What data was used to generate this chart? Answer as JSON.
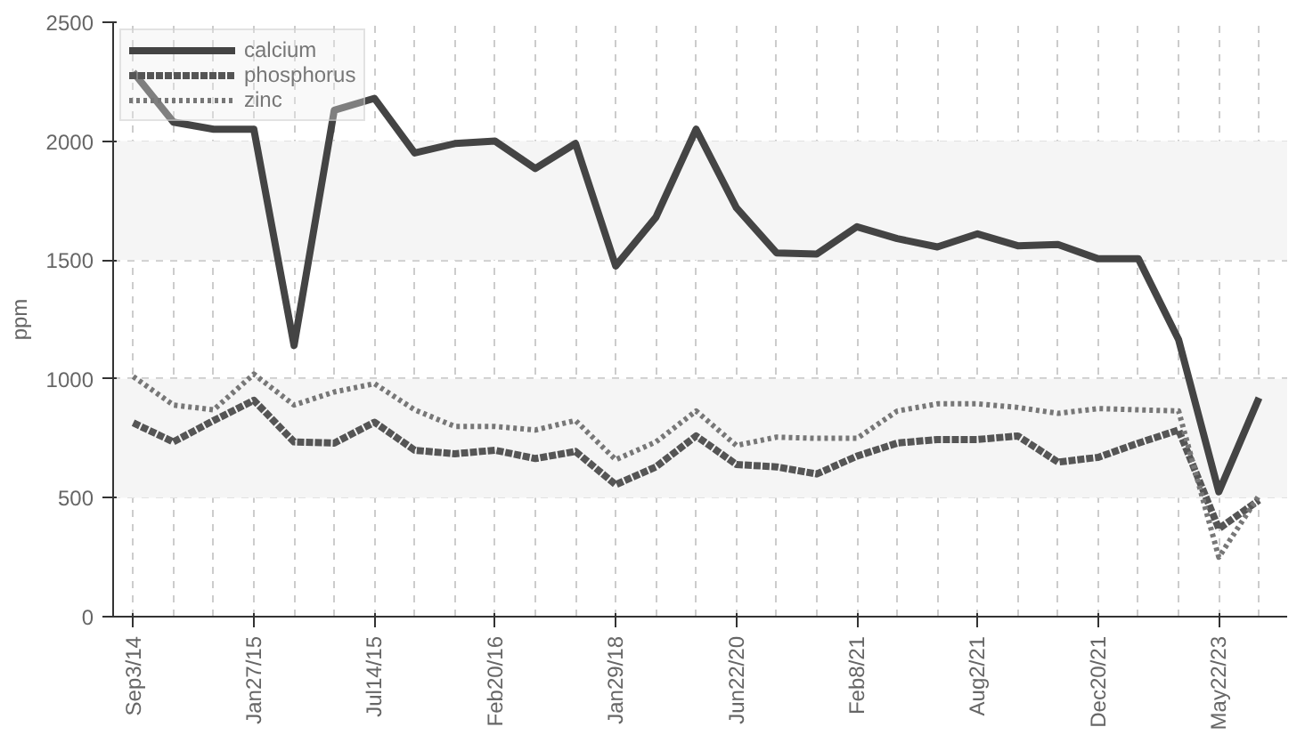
{
  "chart_data": {
    "type": "line",
    "ylabel": "ppm",
    "categories": [
      "Sep3/14",
      null,
      null,
      "Jan27/15",
      null,
      null,
      "Jul14/15",
      null,
      null,
      "Feb20/16",
      null,
      null,
      "Jan29/18",
      null,
      null,
      "Jun22/20",
      null,
      null,
      "Feb8/21",
      null,
      null,
      "Aug2/21",
      null,
      null,
      "Dec20/21",
      null,
      null,
      "May22/23",
      null
    ],
    "series": [
      {
        "name": "calcium",
        "color": "#444444",
        "line_style": "solid",
        "values": [
          2290,
          2080,
          2050,
          2050,
          1140,
          2130,
          2180,
          1950,
          1990,
          2000,
          1885,
          1990,
          1475,
          1680,
          2050,
          1720,
          1530,
          1525,
          1640,
          1590,
          1555,
          1610,
          1560,
          1565,
          1505,
          1505,
          1165,
          525,
          920
        ]
      },
      {
        "name": "phosphorus",
        "color": "#555555",
        "line_style": "dashed",
        "values": [
          815,
          735,
          825,
          910,
          735,
          730,
          818,
          700,
          685,
          700,
          665,
          695,
          555,
          630,
          760,
          640,
          630,
          600,
          675,
          730,
          745,
          745,
          760,
          650,
          670,
          730,
          785,
          370,
          490
        ]
      },
      {
        "name": "zinc",
        "color": "#777777",
        "line_style": "dotted",
        "values": [
          1010,
          890,
          870,
          1020,
          890,
          945,
          980,
          870,
          800,
          800,
          785,
          825,
          660,
          735,
          865,
          720,
          755,
          750,
          750,
          865,
          895,
          895,
          880,
          855,
          875,
          870,
          865,
          250,
          510
        ]
      }
    ],
    "ylim": [
      0,
      2500
    ],
    "yticks": [
      0,
      500,
      1000,
      1500,
      2000,
      2500
    ],
    "bands": [
      {
        "axis": "y",
        "from": 500,
        "to": 1000,
        "color": "#f5f5f5"
      },
      {
        "axis": "y",
        "from": 1500,
        "to": 2000,
        "color": "#f5f5f5"
      }
    ],
    "grid": true,
    "legend": "top left"
  }
}
